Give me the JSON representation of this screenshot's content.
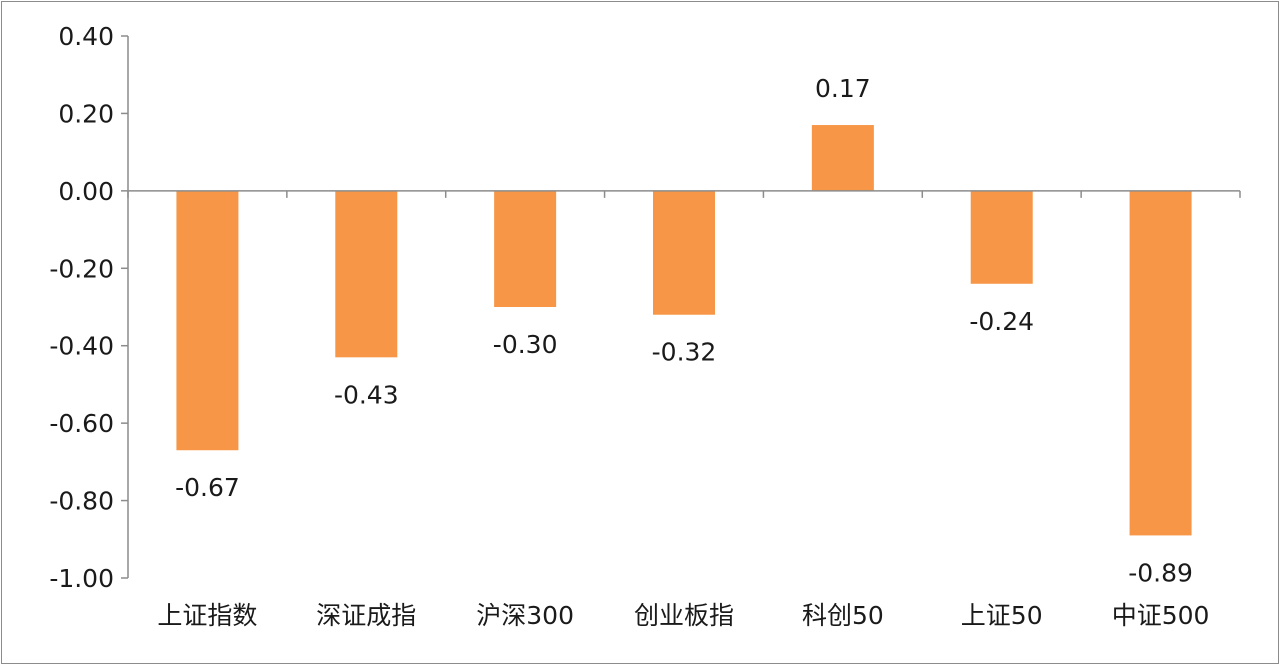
{
  "chart_data": {
    "type": "bar",
    "categories": [
      "上证指数",
      "深证成指",
      "沪深300",
      "创业板指",
      "科创50",
      "上证50",
      "中证500"
    ],
    "values": [
      -0.67,
      -0.43,
      -0.3,
      -0.32,
      0.17,
      -0.24,
      -0.89
    ],
    "data_labels": [
      "-0.67",
      "-0.43",
      "-0.30",
      "-0.32",
      "0.17",
      "-0.24",
      "-0.89"
    ],
    "ylim": [
      -1.0,
      0.4
    ],
    "yticks": [
      0.4,
      0.2,
      0.0,
      -0.2,
      -0.4,
      -0.6,
      -0.8,
      -1.0
    ],
    "ytick_labels": [
      "0.40",
      "0.20",
      "0.00",
      "-0.20",
      "-0.40",
      "-0.60",
      "-0.80",
      "-1.00"
    ],
    "title": "",
    "xlabel": "",
    "ylabel": "",
    "grid": false,
    "legend": "none",
    "bar_color": "#f79646",
    "axis_color": "#8c8c8c"
  }
}
